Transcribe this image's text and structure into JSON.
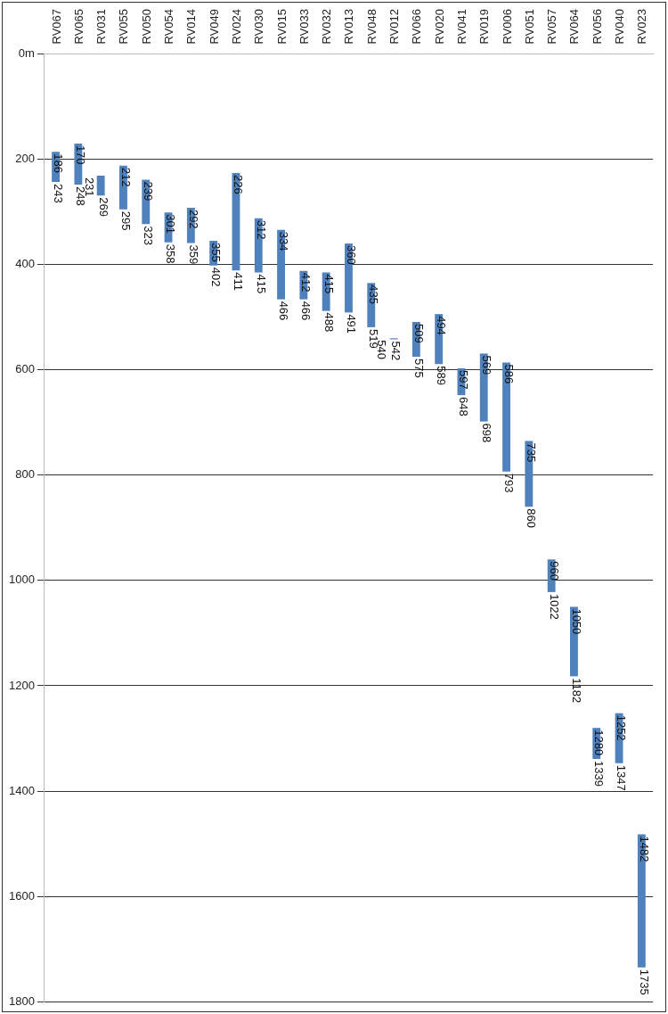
{
  "chart_data": {
    "type": "bar",
    "categories": [
      "RV067",
      "RV065",
      "RV031",
      "RV055",
      "RV050",
      "RV054",
      "RV014",
      "RV049",
      "RV024",
      "RV030",
      "RV015",
      "RV033",
      "RV032",
      "RV013",
      "RV048",
      "RV012",
      "RV066",
      "RV020",
      "RV041",
      "RV019",
      "RV006",
      "RV051",
      "RV057",
      "RV064",
      "RV056",
      "RV040",
      "RV023"
    ],
    "base": [
      186,
      170,
      231,
      212,
      239,
      301,
      292,
      355,
      226,
      312,
      334,
      412,
      415,
      360,
      435,
      540,
      509,
      494,
      597,
      569,
      586,
      735,
      960,
      1050,
      1280,
      1252,
      1482
    ],
    "values": [
      57,
      78,
      38,
      83,
      84,
      57,
      67,
      47,
      185,
      103,
      132,
      54,
      73,
      131,
      84,
      2,
      66,
      95,
      51,
      129,
      207,
      125,
      62,
      132,
      59,
      95,
      253
    ],
    "color": "#4f81bd",
    "ylim": [
      1800,
      0
    ],
    "yticks": [
      {
        "value": 0,
        "label": "0m"
      },
      200,
      400,
      600,
      800,
      1000,
      1200,
      1400,
      1600,
      1800
    ],
    "grid": "y",
    "legend": false,
    "annotations": [
      {
        "text": "186",
        "x": "RV067",
        "y": 186
      },
      {
        "text": "243",
        "x": "RV067",
        "y": 243
      },
      {
        "text": "170",
        "x": "RV065",
        "y": 170
      },
      {
        "text": "248",
        "x": "RV065",
        "y": 248
      },
      {
        "text": "231",
        "x": "RV031",
        "y": 231
      },
      {
        "text": "269",
        "x": "RV031",
        "y": 269
      },
      {
        "text": "212",
        "x": "RV055",
        "y": 212
      },
      {
        "text": "295",
        "x": "RV055",
        "y": 295
      },
      {
        "text": "239",
        "x": "RV050",
        "y": 239
      },
      {
        "text": "323",
        "x": "RV050",
        "y": 323
      },
      {
        "text": "301",
        "x": "RV054",
        "y": 301
      },
      {
        "text": "358",
        "x": "RV054",
        "y": 358
      },
      {
        "text": "292",
        "x": "RV014",
        "y": 292
      },
      {
        "text": "359",
        "x": "RV014",
        "y": 359
      },
      {
        "text": "355",
        "x": "RV049",
        "y": 355
      },
      {
        "text": "402",
        "x": "RV049",
        "y": 402
      },
      {
        "text": "226",
        "x": "RV024",
        "y": 226
      },
      {
        "text": "411",
        "x": "RV024",
        "y": 411
      },
      {
        "text": "312",
        "x": "RV030",
        "y": 312
      },
      {
        "text": "415",
        "x": "RV030",
        "y": 415
      },
      {
        "text": "334",
        "x": "RV015",
        "y": 334
      },
      {
        "text": "466",
        "x": "RV015",
        "y": 466
      },
      {
        "text": "412",
        "x": "RV033",
        "y": 412
      },
      {
        "text": "466",
        "x": "RV033",
        "y": 466
      },
      {
        "text": "415",
        "x": "RV032",
        "y": 415
      },
      {
        "text": "488",
        "x": "RV032",
        "y": 488
      },
      {
        "text": "360",
        "x": "RV013",
        "y": 360
      },
      {
        "text": "491",
        "x": "RV013",
        "y": 491
      },
      {
        "text": "435",
        "x": "RV048",
        "y": 435
      },
      {
        "text": "519",
        "x": "RV048",
        "y": 519
      },
      {
        "text": "540",
        "x": "RV012",
        "y": 540
      },
      {
        "text": "542",
        "x": "RV012",
        "y": 542
      },
      {
        "text": "509",
        "x": "RV066",
        "y": 509
      },
      {
        "text": "575",
        "x": "RV066",
        "y": 575
      },
      {
        "text": "494",
        "x": "RV020",
        "y": 494
      },
      {
        "text": "589",
        "x": "RV020",
        "y": 589
      },
      {
        "text": "597",
        "x": "RV041",
        "y": 597
      },
      {
        "text": "648",
        "x": "RV041",
        "y": 648
      },
      {
        "text": "569",
        "x": "RV019",
        "y": 569
      },
      {
        "text": "698",
        "x": "RV019",
        "y": 698
      },
      {
        "text": "586",
        "x": "RV006",
        "y": 586
      },
      {
        "text": "793",
        "x": "RV006",
        "y": 793
      },
      {
        "text": "735",
        "x": "RV051",
        "y": 735
      },
      {
        "text": "860",
        "x": "RV051",
        "y": 860
      },
      {
        "text": "960",
        "x": "RV057",
        "y": 960
      },
      {
        "text": "1022",
        "x": "RV057",
        "y": 1022
      },
      {
        "text": "1050",
        "x": "RV064",
        "y": 1050
      },
      {
        "text": "1182",
        "x": "RV064",
        "y": 1182
      },
      {
        "text": "1280",
        "x": "RV056",
        "y": 1280
      },
      {
        "text": "1339",
        "x": "RV056",
        "y": 1339
      },
      {
        "text": "1252",
        "x": "RV040",
        "y": 1252
      },
      {
        "text": "1347",
        "x": "RV040",
        "y": 1347
      },
      {
        "text": "1482",
        "x": "RV023",
        "y": 1482
      },
      {
        "text": "1735",
        "x": "RV023",
        "y": 1735
      }
    ]
  }
}
